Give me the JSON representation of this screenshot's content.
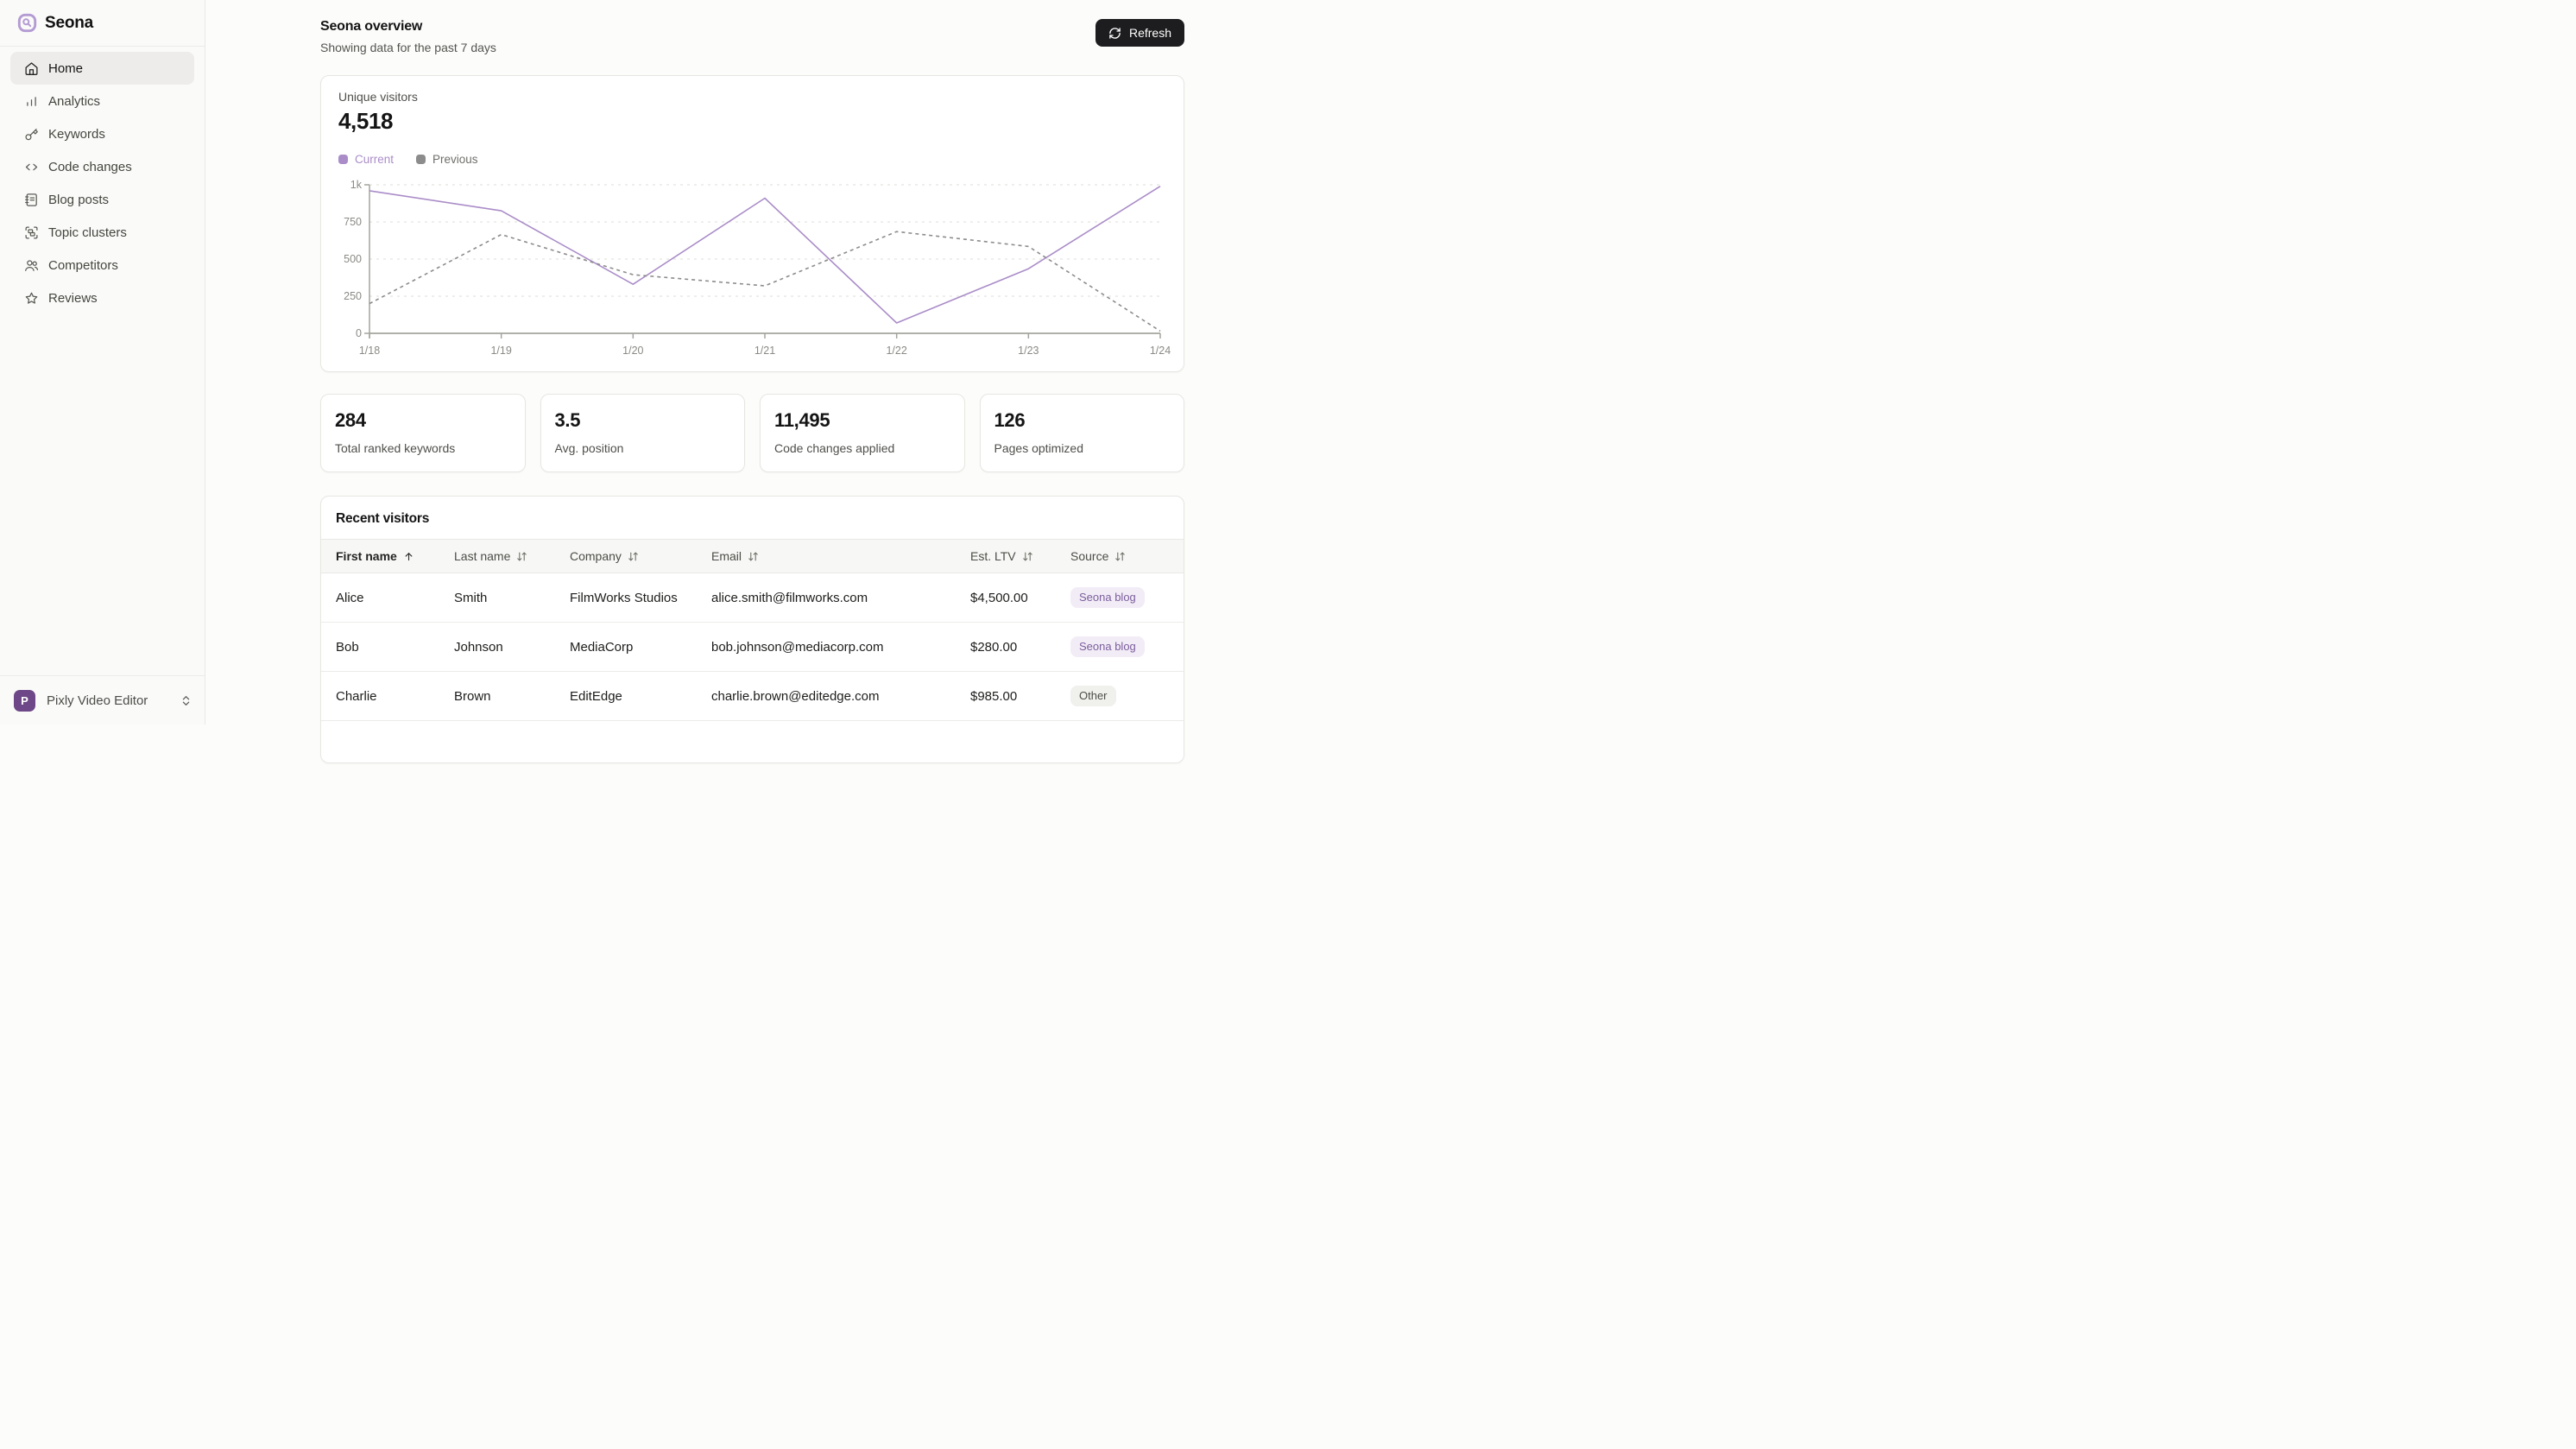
{
  "brand": {
    "name": "Seona"
  },
  "sidebar": {
    "items": [
      {
        "label": "Home",
        "icon": "home-icon",
        "active": true
      },
      {
        "label": "Analytics",
        "icon": "analytics-icon",
        "active": false
      },
      {
        "label": "Keywords",
        "icon": "key-icon",
        "active": false
      },
      {
        "label": "Code changes",
        "icon": "code-icon",
        "active": false
      },
      {
        "label": "Blog posts",
        "icon": "blog-icon",
        "active": false
      },
      {
        "label": "Topic clusters",
        "icon": "cluster-icon",
        "active": false
      },
      {
        "label": "Competitors",
        "icon": "users-icon",
        "active": false
      },
      {
        "label": "Reviews",
        "icon": "star-icon",
        "active": false
      }
    ],
    "workspace": {
      "initial": "P",
      "name": "Pixly Video Editor"
    }
  },
  "header": {
    "title": "Seona overview",
    "subtitle": "Showing data for the past 7 days",
    "refresh_label": "Refresh"
  },
  "overview_card": {
    "title": "Unique visitors",
    "value": "4,518"
  },
  "chart_data": {
    "type": "line",
    "x": [
      "1/18",
      "1/19",
      "1/20",
      "1/21",
      "1/22",
      "1/23",
      "1/24"
    ],
    "series": [
      {
        "name": "Current",
        "values": [
          960,
          825,
          330,
          910,
          70,
          435,
          990
        ],
        "color": "#aa8dc8",
        "text_color": "#aa8dc8",
        "style": "solid"
      },
      {
        "name": "Previous",
        "values": [
          200,
          665,
          395,
          320,
          685,
          585,
          15
        ],
        "color": "#8c8c8c",
        "text_color": "#6f6f6b",
        "style": "dashed"
      }
    ],
    "ylim": [
      0,
      1000
    ],
    "yticks": [
      {
        "value": 0,
        "label": "0"
      },
      {
        "value": 250,
        "label": "250"
      },
      {
        "value": 500,
        "label": "500"
      },
      {
        "value": 750,
        "label": "750"
      },
      {
        "value": 1000,
        "label": "1k"
      }
    ],
    "grid": "horizontal-dashed",
    "legend_position": "top-left",
    "title": "Unique visitors"
  },
  "stats": [
    {
      "value": "284",
      "label": "Total ranked keywords"
    },
    {
      "value": "3.5",
      "label": "Avg. position"
    },
    {
      "value": "11,495",
      "label": "Code changes applied"
    },
    {
      "value": "126",
      "label": "Pages optimized"
    }
  ],
  "table": {
    "title": "Recent visitors",
    "columns": [
      {
        "label": "First name",
        "sort": "asc"
      },
      {
        "label": "Last name",
        "sort": "none"
      },
      {
        "label": "Company",
        "sort": "none"
      },
      {
        "label": "Email",
        "sort": "none"
      },
      {
        "label": "Est. LTV",
        "sort": "none"
      },
      {
        "label": "Source",
        "sort": "none"
      }
    ],
    "rows": [
      {
        "first_name": "Alice",
        "last_name": "Smith",
        "company": "FilmWorks Studios",
        "email": "alice.smith@filmworks.com",
        "est_ltv": "$4,500.00",
        "source": "Seona blog",
        "source_variant": "brand"
      },
      {
        "first_name": "Bob",
        "last_name": "Johnson",
        "company": "MediaCorp",
        "email": "bob.johnson@mediacorp.com",
        "est_ltv": "$280.00",
        "source": "Seona blog",
        "source_variant": "brand"
      },
      {
        "first_name": "Charlie",
        "last_name": "Brown",
        "company": "EditEdge",
        "email": "charlie.brown@editedge.com",
        "est_ltv": "$985.00",
        "source": "Other",
        "source_variant": "neutral"
      }
    ]
  },
  "colors": {
    "accent_purple": "#aa8dc8",
    "logo_purple": "#b49bd3",
    "avatar_purple": "#6d4787",
    "badge_brand_bg": "#f2ecf7",
    "badge_brand_text": "#7b5e9b",
    "badge_neutral_bg": "#f0f0ed",
    "button_dark": "#1d1d1f",
    "previous_gray": "#8c8c8c",
    "grid_gray": "#e4e4e0",
    "axis_gray": "#a4a49e"
  }
}
